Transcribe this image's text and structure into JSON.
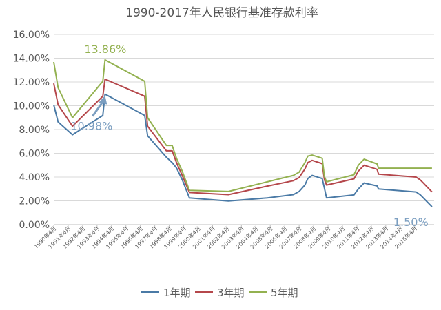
{
  "chart_data": {
    "type": "line",
    "title": "1990-2017年人民银行基准存款利率",
    "xlabel": "",
    "ylabel": "",
    "ylim": [
      0,
      16
    ],
    "y_ticks": [
      "0.00%",
      "2.00%",
      "4.00%",
      "6.00%",
      "8.00%",
      "10.00%",
      "12.00%",
      "14.00%",
      "16.00%"
    ],
    "grid": true,
    "legend_position": "bottom",
    "x_tick_labels": [
      "1990年4月",
      "1991年4月",
      "1992年4月",
      "1993年4月",
      "1994年4月",
      "1995年4月",
      "1996年4月",
      "1997年4月",
      "1998年4月",
      "1999年4月",
      "2000年4月",
      "2001年4月",
      "2002年4月",
      "2003年4月",
      "2004年4月",
      "2005年4月",
      "2006年4月",
      "2007年4月",
      "2008年4月",
      "2009年4月",
      "2010年4月",
      "2011年4月",
      "2012年4月",
      "2013年4月",
      "2014年4月",
      "2015年4月"
    ],
    "x_range": [
      1990.0,
      2016.35
    ],
    "series": [
      {
        "name": "1年期",
        "color": "#4a7aa6",
        "x": [
          1990.0,
          1990.3,
          1991.3,
          1993.4,
          1993.55,
          1996.3,
          1996.5,
          1997.8,
          1998.2,
          1998.5,
          1998.9,
          1999.4,
          2002.1,
          2004.8,
          2006.6,
          2007.0,
          2007.4,
          2007.6,
          2007.9,
          2008.6,
          2008.75,
          2008.9,
          2010.8,
          2011.1,
          2011.5,
          2012.4,
          2012.5,
          2015.1,
          2015.4,
          2015.6,
          2015.8,
          2016.2
        ],
        "y": [
          10.08,
          8.64,
          7.56,
          9.18,
          10.98,
          9.18,
          7.47,
          5.67,
          5.22,
          4.77,
          3.78,
          2.25,
          1.98,
          2.25,
          2.52,
          2.79,
          3.33,
          3.87,
          4.14,
          3.87,
          3.06,
          2.25,
          2.5,
          3.0,
          3.5,
          3.25,
          3.0,
          2.75,
          2.5,
          2.25,
          2.0,
          1.5
        ]
      },
      {
        "name": "3年期",
        "color": "#b5474b",
        "x": [
          1990.0,
          1990.3,
          1991.3,
          1993.4,
          1993.55,
          1996.3,
          1996.5,
          1997.8,
          1998.2,
          1998.5,
          1998.9,
          1999.4,
          2002.1,
          2004.8,
          2006.6,
          2007.0,
          2007.4,
          2007.6,
          2007.9,
          2008.6,
          2008.75,
          2008.9,
          2010.8,
          2011.1,
          2011.5,
          2012.4,
          2012.5,
          2015.1,
          2015.4,
          2015.6,
          2015.8,
          2016.2
        ],
        "y": [
          11.88,
          10.08,
          8.28,
          10.8,
          12.24,
          10.8,
          8.28,
          6.21,
          6.21,
          5.22,
          4.14,
          2.7,
          2.52,
          3.24,
          3.69,
          3.96,
          4.68,
          5.22,
          5.4,
          5.13,
          3.78,
          3.33,
          3.85,
          4.5,
          5.0,
          4.65,
          4.25,
          4.0,
          3.75,
          3.5,
          3.25,
          2.75
        ]
      },
      {
        "name": "5年期",
        "color": "#93b150",
        "x": [
          1990.0,
          1990.3,
          1991.3,
          1993.4,
          1993.55,
          1996.3,
          1996.5,
          1997.8,
          1998.2,
          1998.5,
          1998.9,
          1999.4,
          2002.1,
          2004.8,
          2006.6,
          2007.0,
          2007.4,
          2007.6,
          2007.9,
          2008.6,
          2008.75,
          2008.9,
          2010.8,
          2011.1,
          2011.5,
          2012.4,
          2012.5,
          2015.1,
          2015.4,
          2015.6,
          2015.8,
          2016.2
        ],
        "y": [
          13.68,
          11.52,
          9.0,
          12.06,
          13.86,
          12.06,
          9.0,
          6.66,
          6.66,
          5.58,
          4.5,
          2.88,
          2.79,
          3.6,
          4.14,
          4.41,
          5.22,
          5.76,
          5.85,
          5.58,
          4.05,
          3.6,
          4.2,
          5.0,
          5.5,
          5.1,
          4.75,
          4.75,
          4.75,
          4.75,
          4.75,
          4.75
        ]
      }
    ],
    "annotations": [
      {
        "text": "13.86%",
        "series": 2,
        "x": 1993.55,
        "y": 13.86,
        "color": "#93b150"
      },
      {
        "text": "10.98%",
        "series": 0,
        "x": 1993.55,
        "y": 10.98,
        "color": "#7b9ec0"
      },
      {
        "text": "1.50%",
        "series": 0,
        "x": 2016.2,
        "y": 1.5,
        "color": "#7b9ec0"
      }
    ]
  }
}
